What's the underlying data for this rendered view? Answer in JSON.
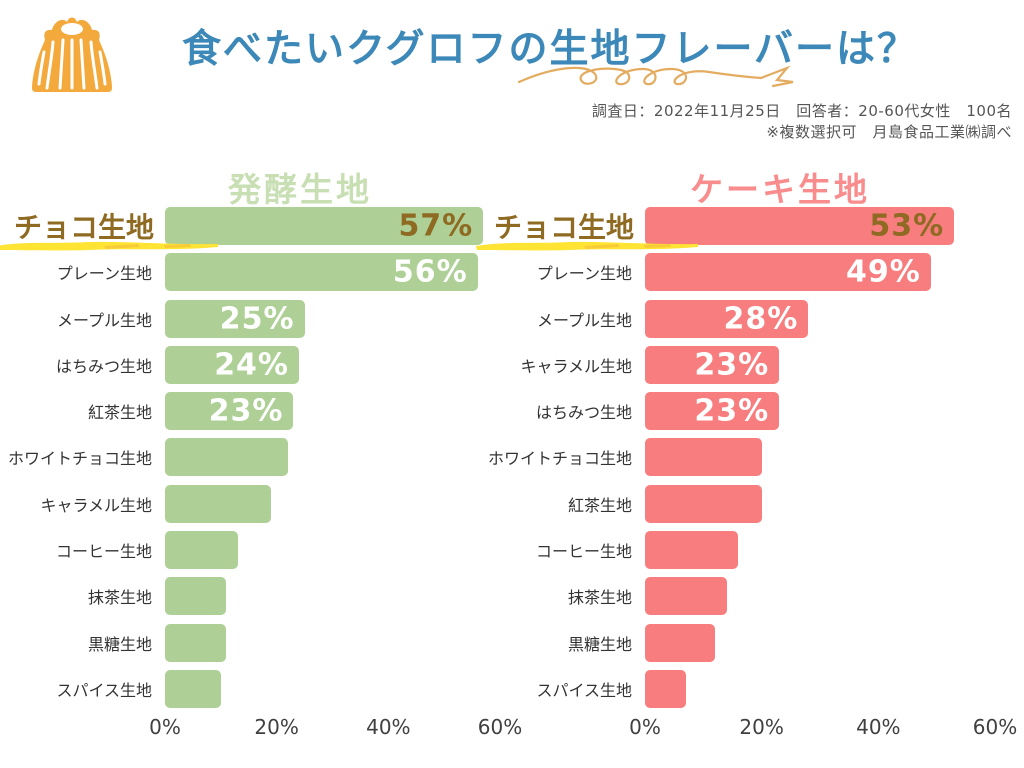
{
  "header": {
    "title": "食べたいクグロフの生地フレーバーは？",
    "title_color": "#3c88b8",
    "icon": "kouglof-cake-icon",
    "icon_color": "#f3a93c",
    "squiggle_color": "#e3ac60",
    "survey_line1": "調査日：2022年11月25日　回答者：20-60代女性　100名",
    "survey_line2": "※複数選択可　月島食品工業㈱調べ"
  },
  "highlight": {
    "text_color": "#8f6a22",
    "marker_color": "#ffe433"
  },
  "chart_data": [
    {
      "type": "bar",
      "orientation": "horizontal",
      "title": "発酵生地",
      "title_color": "#c8dfb4",
      "bar_color": "#aed096",
      "xlim": [
        0,
        60
      ],
      "x_ticks": [
        "0%",
        "20%",
        "40%",
        "60%"
      ],
      "grid": false,
      "highlighted_index": 0,
      "categories": [
        "チョコ生地",
        "プレーン生地",
        "メープル生地",
        "はちみつ生地",
        "紅茶生地",
        "ホワイトチョコ生地",
        "キャラメル生地",
        "コーヒー生地",
        "抹茶生地",
        "黒糖生地",
        "スパイス生地"
      ],
      "values": [
        57,
        56,
        25,
        24,
        23,
        22,
        19,
        13,
        11,
        11,
        10
      ],
      "value_labels": [
        "57%",
        "56%",
        "25%",
        "24%",
        "23%",
        "",
        "",
        "",
        "",
        "",
        ""
      ]
    },
    {
      "type": "bar",
      "orientation": "horizontal",
      "title": "ケーキ生地",
      "title_color": "#f98d8e",
      "bar_color": "#f87d7e",
      "xlim": [
        0,
        60
      ],
      "x_ticks": [
        "0%",
        "20%",
        "40%",
        "60%"
      ],
      "grid": false,
      "highlighted_index": 0,
      "categories": [
        "チョコ生地",
        "プレーン生地",
        "メープル生地",
        "キャラメル生地",
        "はちみつ生地",
        "ホワイトチョコ生地",
        "紅茶生地",
        "コーヒー生地",
        "抹茶生地",
        "黒糖生地",
        "スパイス生地"
      ],
      "values": [
        53,
        49,
        28,
        23,
        23,
        20,
        20,
        16,
        14,
        12,
        7
      ],
      "value_labels": [
        "53%",
        "49%",
        "28%",
        "23%",
        "23%",
        "",
        "",
        "",
        "",
        "",
        ""
      ]
    }
  ]
}
